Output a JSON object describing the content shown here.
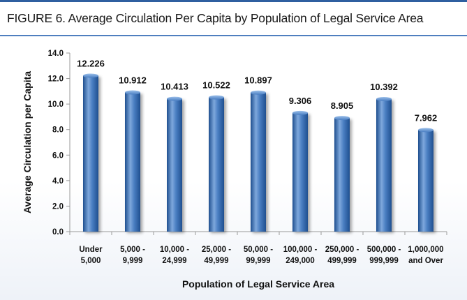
{
  "figure_title": "FIGURE 6. Average Circulation Per Capita by Population of Legal Service Area",
  "colors": {
    "accent": "#2f5fa0",
    "bar_light": "#7ea8dc",
    "bar_mid": "#4a7ec2",
    "bar_dark": "#1f4f8f",
    "text": "#111111"
  },
  "chart_data": {
    "type": "bar",
    "title": "",
    "xlabel": "Population of Legal Service Area",
    "ylabel": "Average Circulation per Capita",
    "ylim": [
      0,
      14
    ],
    "yticks": [
      "0.0",
      "2.0",
      "4.0",
      "6.0",
      "8.0",
      "10.0",
      "12.0",
      "14.0"
    ],
    "categories": [
      [
        "Under",
        "5,000"
      ],
      [
        "5,000 -",
        "9,999"
      ],
      [
        "10,000 -",
        "24,999"
      ],
      [
        "25,000 -",
        "49,999"
      ],
      [
        "50,000 -",
        "99,999"
      ],
      [
        "100,000 -",
        "249,000"
      ],
      [
        "250,000 -",
        "499,999"
      ],
      [
        "500,000 -",
        "999,999"
      ],
      [
        "1,000,000",
        "and Over"
      ]
    ],
    "values": [
      12.226,
      10.912,
      10.413,
      10.522,
      10.897,
      9.306,
      8.905,
      10.392,
      7.962
    ],
    "data_labels": [
      "12.226",
      "10.912",
      "10.413",
      "10.522",
      "10.897",
      "9.306",
      "8.905",
      "10.392",
      "7.962"
    ],
    "grid": false,
    "legend": "none"
  }
}
